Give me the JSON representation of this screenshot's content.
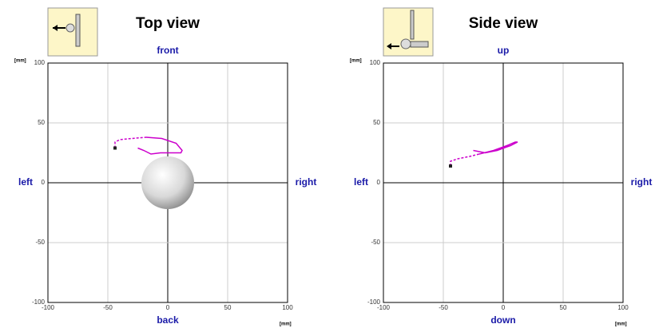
{
  "chart_data": [
    {
      "type": "line",
      "title": "Top view",
      "xlabel": "[mm]",
      "ylabel": "[mm]",
      "labels": {
        "top": "front",
        "bottom": "back",
        "left": "left",
        "right": "right"
      },
      "xlim": [
        -100,
        100
      ],
      "ylim": [
        -100,
        100
      ],
      "xticks": [
        -100,
        -50,
        0,
        50,
        100
      ],
      "yticks": [
        -100,
        -50,
        0,
        50,
        100
      ],
      "grid": true,
      "series": [
        {
          "color": "#cc00cc",
          "dashed": true,
          "x": [
            -44,
            -44,
            -40,
            -30,
            -18
          ],
          "values": [
            29,
            34,
            36,
            37,
            38
          ]
        },
        {
          "color": "#cc00cc",
          "dashed": false,
          "x": [
            -18,
            -5,
            7,
            12,
            11,
            3,
            -6,
            -14,
            -20,
            -25
          ],
          "values": [
            38,
            37,
            33,
            27,
            25,
            25,
            25,
            24,
            27,
            29
          ]
        }
      ]
    },
    {
      "type": "line",
      "title": "Side view",
      "xlabel": "[mm]",
      "ylabel": "[mm]",
      "labels": {
        "top": "up",
        "bottom": "down",
        "left": "left",
        "right": "right"
      },
      "xlim": [
        -100,
        100
      ],
      "ylim": [
        -100,
        100
      ],
      "xticks": [
        -100,
        -50,
        0,
        50,
        100
      ],
      "yticks": [
        -100,
        -50,
        0,
        50,
        100
      ],
      "grid": true,
      "series": [
        {
          "color": "#cc00cc",
          "dashed": true,
          "x": [
            -44,
            -44,
            -38,
            -28,
            -20
          ],
          "values": [
            14,
            18,
            20,
            22,
            24
          ]
        },
        {
          "color": "#cc00cc",
          "dashed": false,
          "x": [
            -20,
            -8,
            3,
            10,
            12,
            6,
            -5,
            -15,
            -25
          ],
          "values": [
            24,
            27,
            31,
            34,
            34,
            31,
            27,
            25,
            27
          ]
        }
      ]
    }
  ]
}
